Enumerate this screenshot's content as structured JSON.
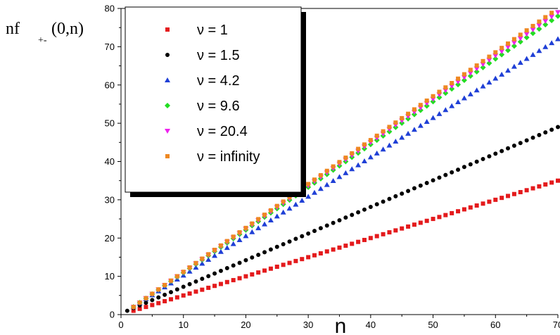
{
  "chart_data": {
    "type": "scatter",
    "xlabel": "n",
    "ylabel": {
      "main": "nf",
      "sub": "+-",
      "args": "(0,n)"
    },
    "xlim": [
      0,
      70
    ],
    "ylim": [
      0,
      80
    ],
    "x_ticks": [
      0,
      10,
      20,
      30,
      40,
      50,
      60,
      70
    ],
    "y_ticks": [
      0,
      10,
      20,
      30,
      40,
      50,
      60,
      70,
      80
    ],
    "x_tick_labels": [
      "0",
      "10",
      "20",
      "30",
      "40",
      "50",
      "60",
      "70"
    ],
    "y_tick_labels": [
      "0",
      "10",
      "20",
      "30",
      "40",
      "50",
      "60",
      "70",
      "80"
    ],
    "grid": false,
    "legend": {
      "placement": "top-left"
    },
    "x_range": [
      1,
      70
    ],
    "series": [
      {
        "name": "ν = 1",
        "color": "#e41a1c",
        "marker": "square",
        "x_start": 2,
        "slope": 0.5,
        "intercept": 0
      },
      {
        "name": "ν = 1.5",
        "color": "#000000",
        "marker": "circle",
        "x_start": 1,
        "slope": 0.6957,
        "intercept": 0.3043
      },
      {
        "name": "ν = 4.2",
        "color": "#1f3fd6",
        "marker": "triangle-up",
        "x_start": 2,
        "slope": 1.0294,
        "intercept": -0.0588
      },
      {
        "name": "ν = 9.6",
        "color": "#22dd22",
        "marker": "diamond",
        "x_start": 2,
        "slope": 1.1176,
        "intercept": -0.2353
      },
      {
        "name": "ν = 20.4",
        "color": "#ee22ee",
        "marker": "triangle-down",
        "x_start": 2,
        "slope": 1.1324,
        "intercept": -0.2647
      },
      {
        "name": "ν = infinity",
        "color": "#ee8822",
        "marker": "square",
        "x_start": 2,
        "slope": 1.1471,
        "intercept": -0.2941
      }
    ]
  }
}
